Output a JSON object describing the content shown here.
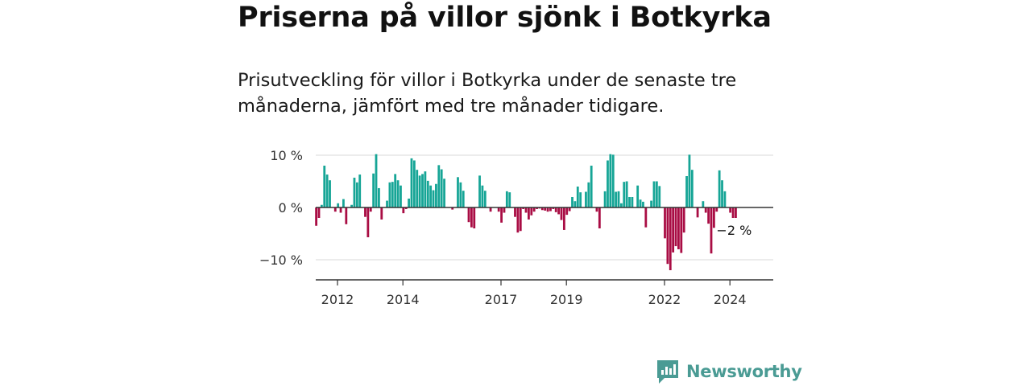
{
  "title": "Priserna på villor sjönk i Botkyrka",
  "subtitle": "Prisutveckling för villor i Botkyrka under de senaste tre månaderna, jämfört med tre månader tidigare.",
  "brand": "Newsworthy",
  "colors": {
    "positive": "#16a596",
    "negative": "#a90d44",
    "grid": "#d9d9d9",
    "axis": "#333333",
    "brand": "#4a9b94"
  },
  "chart_data": {
    "type": "bar",
    "title": "Priserna på villor sjönk i Botkyrka",
    "xlabel": "",
    "ylabel": "",
    "ylim": [
      -14,
      11
    ],
    "grid": true,
    "y_ticks": [
      {
        "value": 10,
        "label": "10 %"
      },
      {
        "value": 0,
        "label": "0 %"
      },
      {
        "value": -10,
        "label": "−10 %"
      }
    ],
    "x_ticks": [
      {
        "value": 2012,
        "label": "2012"
      },
      {
        "value": 2014,
        "label": "2014"
      },
      {
        "value": 2017,
        "label": "2017"
      },
      {
        "value": 2019,
        "label": "2019"
      },
      {
        "value": 2022,
        "label": "2022"
      },
      {
        "value": 2024,
        "label": "2024"
      }
    ],
    "x_start": 2011.35,
    "x_step": 0.0833,
    "last_value_label": "−2 %",
    "values": [
      -3.5,
      -2,
      0.5,
      8,
      6.3,
      5.2,
      0,
      -0.8,
      0.8,
      -1,
      1.6,
      -3.2,
      0,
      0.5,
      5.7,
      4.8,
      6.3,
      0,
      -1.8,
      -5.7,
      -0.8,
      6.5,
      10.2,
      3.7,
      -2.3,
      0,
      1.3,
      4.8,
      4.9,
      6.4,
      5.2,
      4.2,
      -1.1,
      -0.3,
      1.7,
      9.4,
      9,
      7.2,
      6.1,
      6.4,
      6.9,
      5.1,
      4.2,
      3.3,
      4.5,
      8.1,
      7.3,
      5.5,
      0,
      0,
      -0.4,
      0,
      5.8,
      4.8,
      3.2,
      0,
      -2.8,
      -3.8,
      -4,
      0,
      6.1,
      4.2,
      3.2,
      0,
      -0.8,
      0,
      0,
      -0.8,
      -2.9,
      -1,
      3.1,
      2.9,
      0,
      -1.8,
      -4.8,
      -4.5,
      -0.3,
      -1,
      -2.3,
      -1.5,
      -0.8,
      -0.3,
      -0.2,
      -0.5,
      -0.6,
      -0.8,
      -0.7,
      -0.3,
      -0.9,
      -1.3,
      -2.4,
      -4.3,
      -1.4,
      -0.7,
      2,
      1.2,
      4,
      2.9,
      0,
      3,
      4.8,
      8,
      0,
      -0.8,
      -4,
      0,
      3.1,
      9,
      10.2,
      10.1,
      3,
      3.1,
      0.8,
      4.9,
      5,
      2,
      2,
      0,
      4.2,
      1.5,
      1.1,
      -3.8,
      0,
      1.3,
      5,
      5,
      4.1,
      0,
      -5.9,
      -10.8,
      -12,
      -8.6,
      -7.4,
      -8,
      -8.7,
      -4.8,
      6,
      10.1,
      7.2,
      0,
      -1.9,
      0,
      1.2,
      -1,
      -3.1,
      -8.8,
      -3.9,
      -0.8,
      7.1,
      5.2,
      3.1,
      0,
      -1,
      -2,
      -2
    ]
  }
}
